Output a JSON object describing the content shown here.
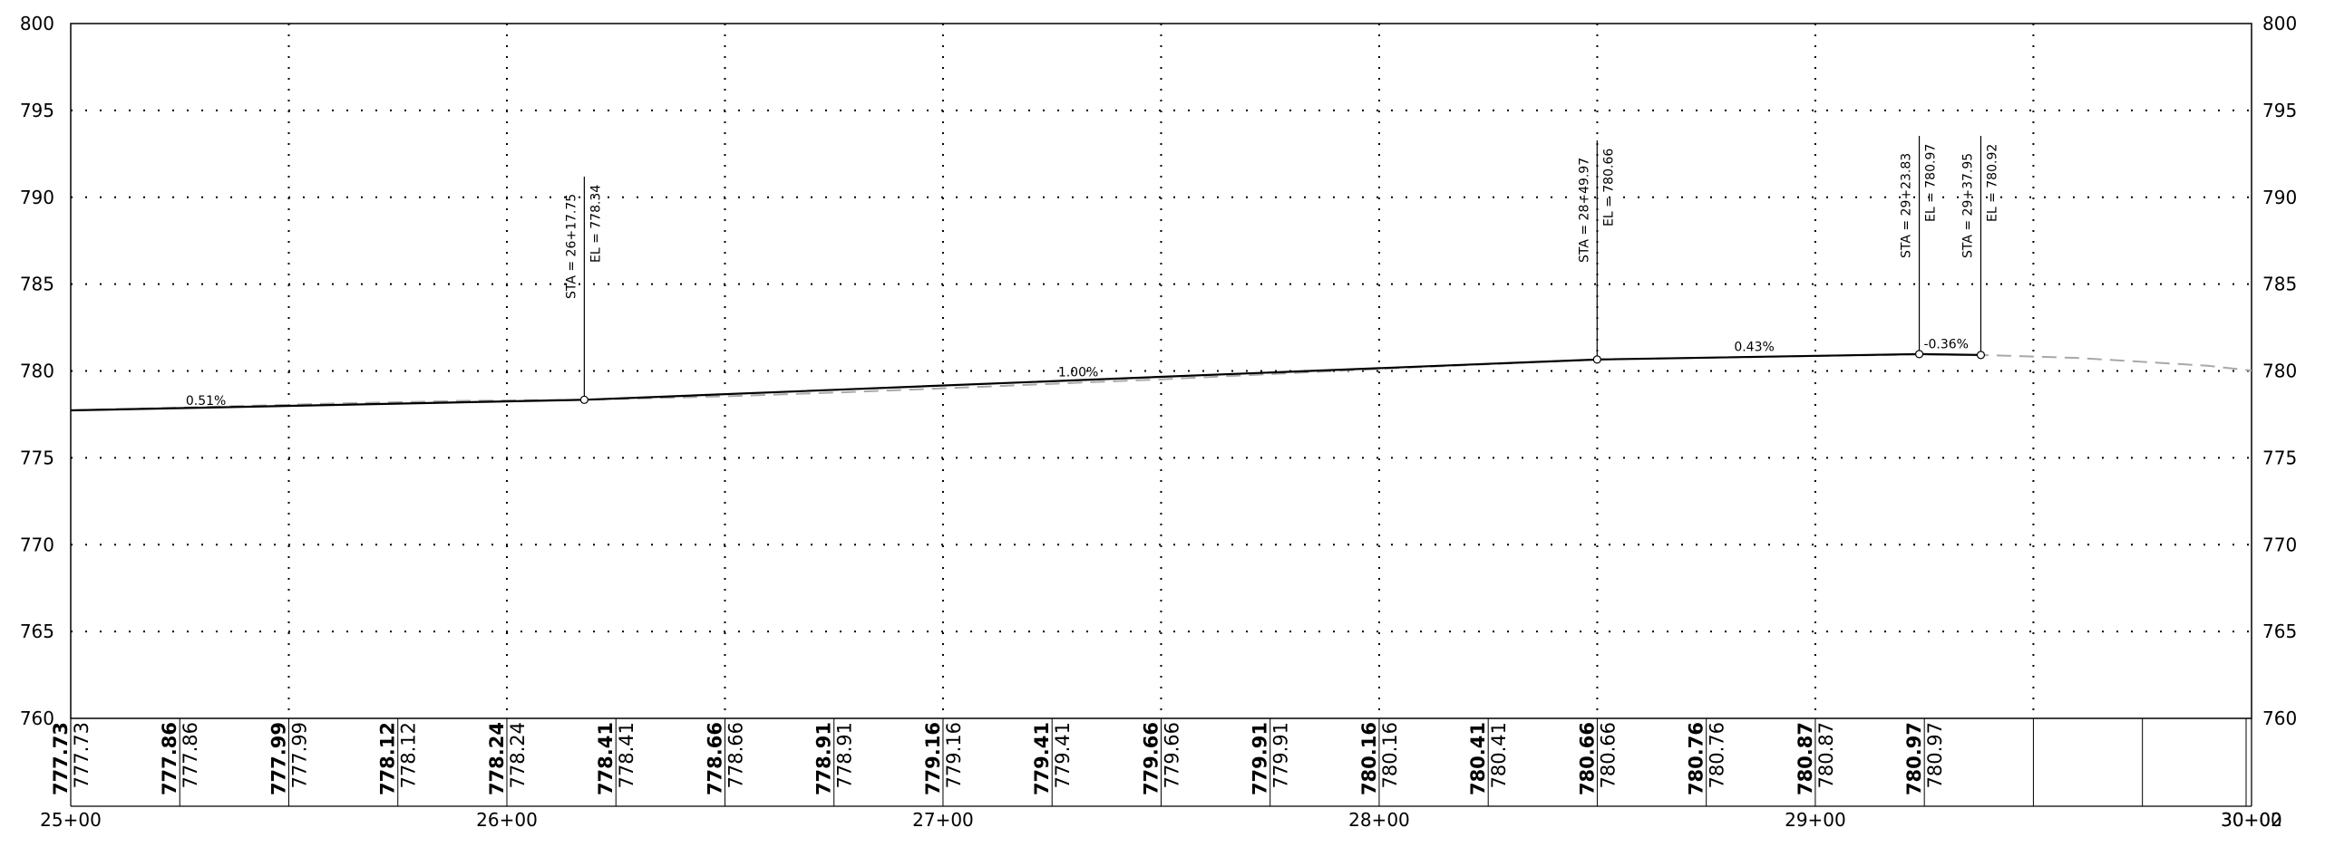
{
  "chart_data": {
    "type": "line",
    "xlim": [
      2500,
      3000.02
    ],
    "ylim": [
      760,
      800
    ],
    "grid": true,
    "x_tick_labels": [
      {
        "sta": 2500,
        "label": "25+00"
      },
      {
        "sta": 2600,
        "label": "26+00"
      },
      {
        "sta": 2700,
        "label": "27+00"
      },
      {
        "sta": 2800,
        "label": "28+00"
      },
      {
        "sta": 2900,
        "label": "29+00"
      },
      {
        "sta": 3000,
        "label": "30+00"
      },
      {
        "sta": 3000.02,
        "label": "30+02"
      }
    ],
    "y_ticks": [
      760,
      765,
      770,
      775,
      780,
      785,
      790,
      795,
      800
    ],
    "y_tick_labels": [
      "760",
      "765",
      "770",
      "775",
      "780",
      "785",
      "790",
      "795",
      "800"
    ],
    "proposed_profile": {
      "x": [
        2500,
        2617.75,
        2849.97,
        2923.83,
        2937.95
      ],
      "y": [
        777.73,
        778.34,
        780.66,
        780.97,
        780.92
      ]
    },
    "existing_ground": {
      "x": [
        2500,
        2530,
        2560,
        2590,
        2617.75,
        2650,
        2680,
        2700,
        2750,
        2800,
        2850,
        2880,
        2900,
        2923.83,
        2937.95,
        2960,
        2990,
        3000.02
      ],
      "y": [
        777.73,
        777.92,
        778.12,
        778.28,
        778.34,
        778.54,
        778.8,
        779.0,
        779.52,
        780.12,
        780.66,
        780.78,
        780.86,
        780.95,
        780.92,
        780.75,
        780.3,
        780.02
      ]
    },
    "pvis": [
      {
        "sta": 2617.75,
        "el": 778.34,
        "sta_label": "STA = 26+17.75",
        "el_label": "EL = 778.34"
      },
      {
        "sta": 2849.97,
        "el": 780.66,
        "sta_label": "STA = 28+49.97",
        "el_label": "EL = 780.66"
      },
      {
        "sta": 2923.83,
        "el": 780.97,
        "sta_label": "STA = 29+23.83",
        "el_label": "EL = 780.97"
      },
      {
        "sta": 2937.95,
        "el": 780.92,
        "sta_label": "STA = 29+37.95",
        "el_label": "EL = 780.92"
      }
    ],
    "grades": [
      {
        "label": "0.51%",
        "sta": 2531,
        "el": 778.05
      },
      {
        "label": "1.00%",
        "sta": 2731,
        "el": 779.7
      },
      {
        "label": "0.43%",
        "sta": 2886,
        "el": 781.15
      },
      {
        "label": "-0.36%",
        "sta": 2930,
        "el": 781.3
      }
    ],
    "elevation_table": [
      {
        "sta": 2500,
        "bold": "777.73",
        "light": "777.73"
      },
      {
        "sta": 2525,
        "bold": "777.86",
        "light": "777.86"
      },
      {
        "sta": 2550,
        "bold": "777.99",
        "light": "777.99"
      },
      {
        "sta": 2575,
        "bold": "778.12",
        "light": "778.12"
      },
      {
        "sta": 2600,
        "bold": "778.24",
        "light": "778.24"
      },
      {
        "sta": 2625,
        "bold": "778.41",
        "light": "778.41"
      },
      {
        "sta": 2650,
        "bold": "778.66",
        "light": "778.66"
      },
      {
        "sta": 2675,
        "bold": "778.91",
        "light": "778.91"
      },
      {
        "sta": 2700,
        "bold": "779.16",
        "light": "779.16"
      },
      {
        "sta": 2725,
        "bold": "779.41",
        "light": "779.41"
      },
      {
        "sta": 2750,
        "bold": "779.66",
        "light": "779.66"
      },
      {
        "sta": 2775,
        "bold": "779.91",
        "light": "779.91"
      },
      {
        "sta": 2800,
        "bold": "780.16",
        "light": "780.16"
      },
      {
        "sta": 2825,
        "bold": "780.41",
        "light": "780.41"
      },
      {
        "sta": 2850,
        "bold": "780.66",
        "light": "780.66"
      },
      {
        "sta": 2875,
        "bold": "780.76",
        "light": "780.76"
      },
      {
        "sta": 2900,
        "bold": "780.87",
        "light": "780.87"
      },
      {
        "sta": 2925,
        "bold": "780.97",
        "light": "780.97"
      },
      {
        "sta": 2950,
        "bold": "",
        "light": ""
      },
      {
        "sta": 2975,
        "bold": "",
        "light": ""
      },
      {
        "sta": 3000,
        "bold": "",
        "light": ""
      }
    ]
  }
}
